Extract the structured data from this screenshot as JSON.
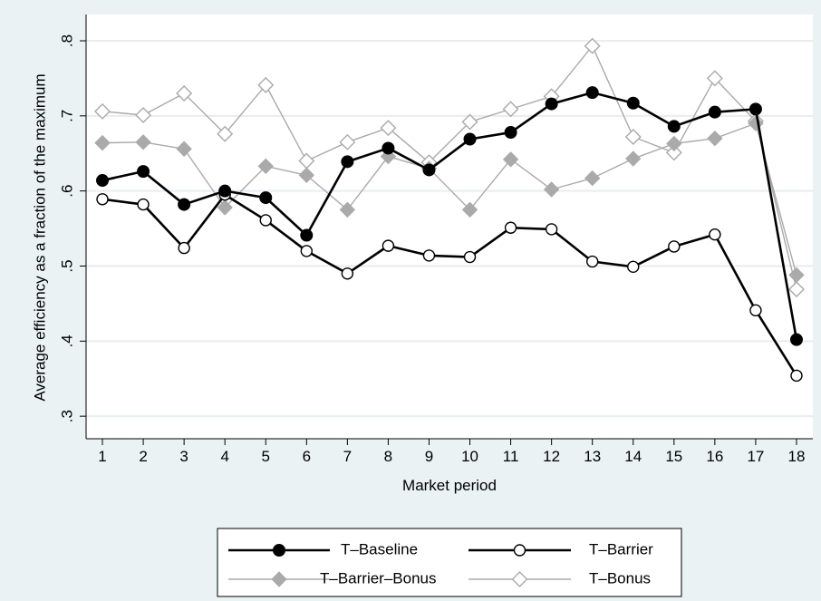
{
  "chart_data": {
    "type": "line",
    "title": "",
    "xlabel": "Market period",
    "ylabel": "Average efficiency as a fraction of the maximum",
    "x": [
      1,
      2,
      3,
      4,
      5,
      6,
      7,
      8,
      9,
      10,
      11,
      12,
      13,
      14,
      15,
      16,
      17,
      18
    ],
    "x_tick_labels": [
      "1",
      "2",
      "3",
      "4",
      "5",
      "6",
      "7",
      "8",
      "9",
      "10",
      "11",
      "12",
      "13",
      "14",
      "15",
      "16",
      "17",
      "18"
    ],
    "y_ticks": [
      0.3,
      0.4,
      0.5,
      0.6,
      0.7,
      0.8
    ],
    "y_tick_labels": [
      ".3",
      ".4",
      ".5",
      ".6",
      ".7",
      ".8"
    ],
    "xlim": [
      0.6,
      18.4
    ],
    "ylim": [
      0.27,
      0.835
    ],
    "grid": true,
    "legend_position": "bottom",
    "series": [
      {
        "name": "T–Baseline",
        "color": "#000000",
        "marker": "filled-circle",
        "values": [
          0.614,
          0.626,
          0.582,
          0.6,
          0.591,
          0.541,
          0.639,
          0.657,
          0.628,
          0.669,
          0.678,
          0.716,
          0.731,
          0.717,
          0.686,
          0.705,
          0.709,
          0.402
        ]
      },
      {
        "name": "T–Barrier",
        "color": "#000000",
        "marker": "hollow-circle",
        "values": [
          0.589,
          0.582,
          0.524,
          0.595,
          0.561,
          0.52,
          0.49,
          0.527,
          0.514,
          0.512,
          0.551,
          0.549,
          0.506,
          0.499,
          0.526,
          0.542,
          0.441,
          0.354
        ]
      },
      {
        "name": "T–Barrier–Bonus",
        "color": "#aaaaaa",
        "marker": "filled-diamond",
        "values": [
          0.664,
          0.665,
          0.656,
          0.578,
          0.633,
          0.621,
          0.575,
          0.646,
          0.63,
          0.575,
          0.642,
          0.602,
          0.617,
          0.643,
          0.663,
          0.67,
          0.69,
          0.488
        ]
      },
      {
        "name": "T–Bonus",
        "color": "#aaaaaa",
        "marker": "hollow-diamond",
        "values": [
          0.706,
          0.701,
          0.73,
          0.676,
          0.741,
          0.64,
          0.665,
          0.684,
          0.638,
          0.692,
          0.709,
          0.726,
          0.793,
          0.672,
          0.651,
          0.75,
          0.693,
          0.469
        ]
      }
    ]
  }
}
